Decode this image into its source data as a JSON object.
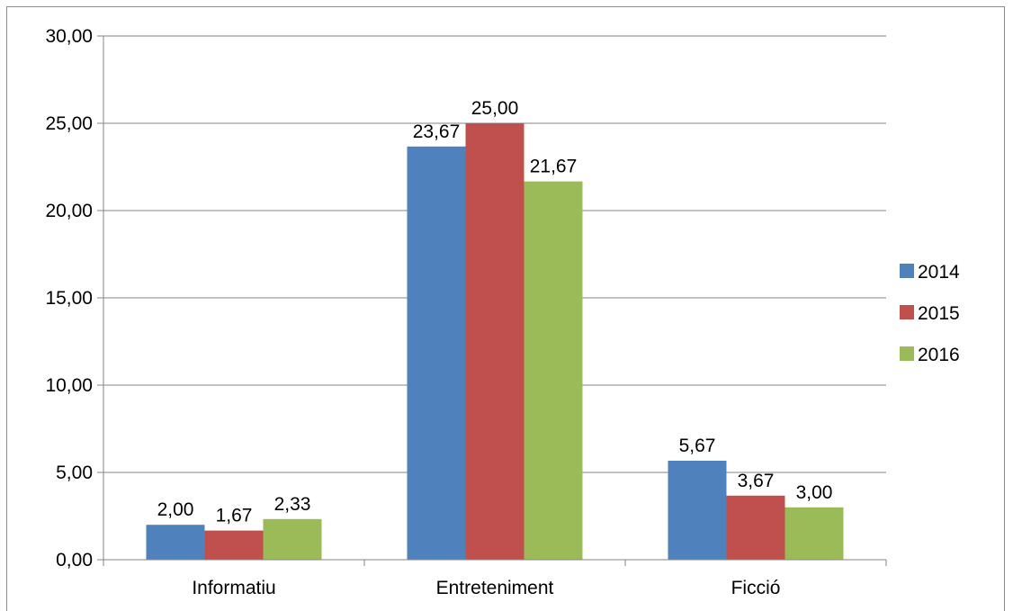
{
  "chart_data": {
    "type": "bar",
    "categories": [
      "Informatiu",
      "Entreteniment",
      "Ficció"
    ],
    "series": [
      {
        "name": "2014",
        "values": [
          2.0,
          23.67,
          5.67
        ],
        "labels": [
          "2,00",
          "23,67",
          "5,67"
        ],
        "color": "#4f81bd"
      },
      {
        "name": "2015",
        "values": [
          1.67,
          25.0,
          3.67
        ],
        "labels": [
          "1,67",
          "25,00",
          "3,67"
        ],
        "color": "#c0504d"
      },
      {
        "name": "2016",
        "values": [
          2.33,
          21.67,
          3.0
        ],
        "labels": [
          "2,33",
          "21,67",
          "3,00"
        ],
        "color": "#9bbb59"
      }
    ],
    "ylim": [
      0,
      30
    ],
    "yticks": [
      0,
      5,
      10,
      15,
      20,
      25,
      30
    ],
    "ytick_labels": [
      "0,00",
      "5,00",
      "10,00",
      "15,00",
      "20,00",
      "25,00",
      "30,00"
    ],
    "grid": true,
    "legend_position": "right",
    "title": "",
    "xlabel": "",
    "ylabel": ""
  }
}
